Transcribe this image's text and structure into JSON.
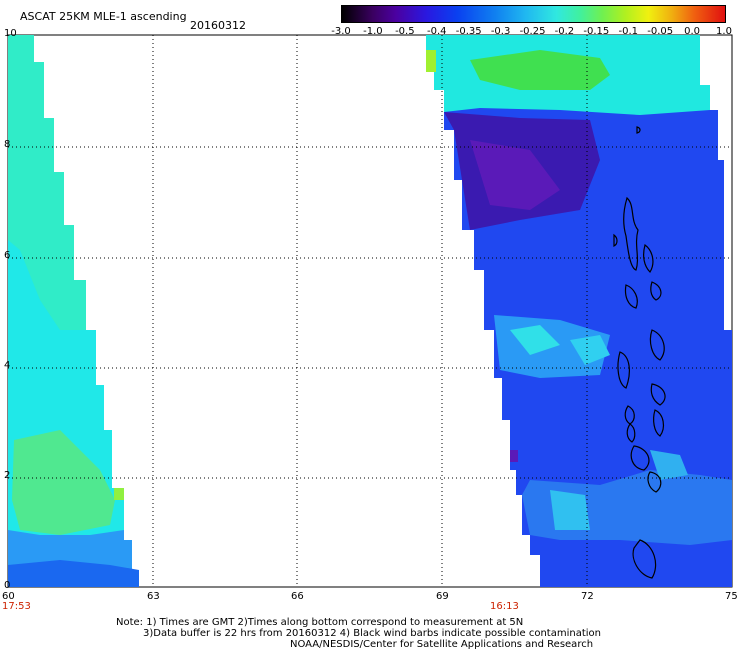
{
  "header": {
    "title": "ASCAT 25KM MLE-1 ascending",
    "date": "20160312"
  },
  "colorbar": {
    "labels": [
      "-3.0",
      "-1.0",
      "-0.5",
      "-0.4",
      "-0.35",
      "-0.3",
      "-0.25",
      "-0.2",
      "-0.15",
      "-0.1",
      "-0.05",
      "0.0",
      "1.0"
    ],
    "colors": [
      "#200018",
      "#5a0080",
      "#2a18e0",
      "#0a50f0",
      "#1890f0",
      "#28c8f0",
      "#30f0c8",
      "#60f080",
      "#a0f040",
      "#f0f020",
      "#f0a020",
      "#f04020",
      "#e01010"
    ]
  },
  "map": {
    "y_ticks": [
      "0",
      "2",
      "4",
      "6",
      "8",
      "10"
    ],
    "x_ticks": [
      "60",
      "63",
      "66",
      "69",
      "72",
      "75"
    ],
    "pass_times": [
      "17:53",
      "16:13"
    ],
    "colors": {
      "deep_purple": "#3a1ab0",
      "blue": "#2048f0",
      "sky": "#2a9af5",
      "cyan": "#20f0e8",
      "green": "#40e040",
      "lime": "#a0f030"
    }
  },
  "notes": {
    "line1": "Note: 1) Times are GMT 2)Times along bottom correspond to measurement at 5N",
    "line2": "3)Data buffer is 22 hrs from 20160312 4) Black wind barbs indicate possible contamination",
    "line3": "NOAA/NESDIS/Center for Satellite Applications and Research"
  }
}
